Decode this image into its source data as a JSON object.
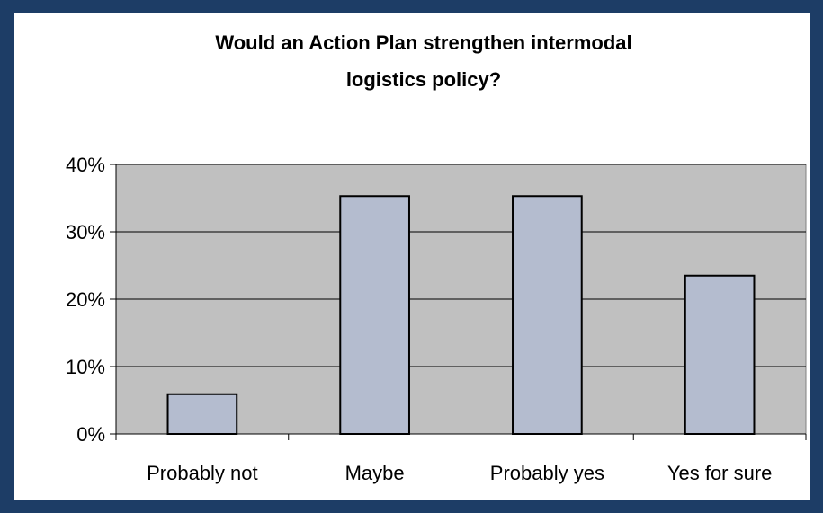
{
  "chart_data": {
    "type": "bar",
    "title_lines": [
      "Would an Action Plan strengthen intermodal",
      "logistics policy?"
    ],
    "xlabel": "",
    "ylabel": "",
    "categories": [
      "Probably not",
      "Maybe",
      "Probably yes",
      "Yes for sure"
    ],
    "values": [
      5.9,
      35.3,
      35.3,
      23.5
    ],
    "value_unit": "%",
    "ylim": [
      0,
      40
    ],
    "yticks": [
      0,
      10,
      20,
      30,
      40
    ],
    "ytick_labels": [
      "0%",
      "10%",
      "20%",
      "30%",
      "40%"
    ],
    "grid": true,
    "legend": "none",
    "colors": {
      "frame": "#1d3d66",
      "plot_background": "#c0c0c0",
      "bar_fill": "#b4bccf",
      "bar_stroke": "#000000",
      "gridline": "#000000"
    }
  }
}
